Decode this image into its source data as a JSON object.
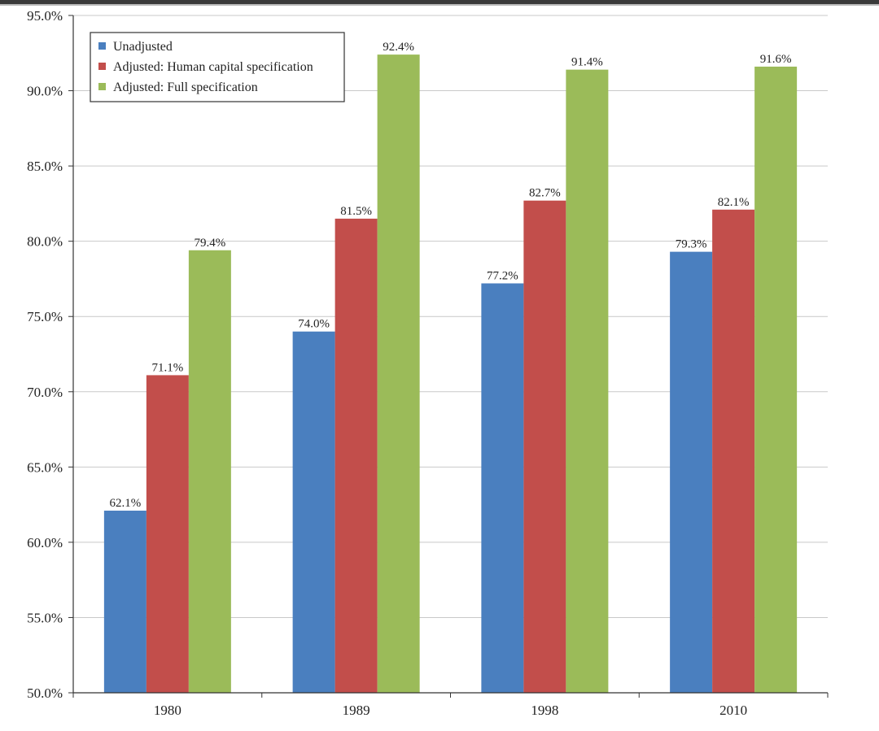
{
  "colors": {
    "unadjusted": "#4a7fbf",
    "human_capital": "#c24e4b",
    "full": "#9bbb59",
    "grid": "#c9c9c9",
    "axis": "#333333"
  },
  "chart_data": {
    "type": "bar",
    "title": "",
    "xlabel": "",
    "ylabel": "",
    "categories": [
      "1980",
      "1989",
      "1998",
      "2010"
    ],
    "series": [
      {
        "name": "Unadjusted",
        "values": [
          62.1,
          74.0,
          77.2,
          79.3
        ],
        "labels": [
          "62.1%",
          "74.0%",
          "77.2%",
          "79.3%"
        ],
        "color_key": "unadjusted"
      },
      {
        "name": "Adjusted: Human capital specification",
        "values": [
          71.1,
          81.5,
          82.7,
          82.1
        ],
        "labels": [
          "71.1%",
          "81.5%",
          "82.7%",
          "82.1%"
        ],
        "color_key": "human_capital"
      },
      {
        "name": "Adjusted: Full specification",
        "values": [
          79.4,
          92.4,
          91.4,
          91.6
        ],
        "labels": [
          "79.4%",
          "92.4%",
          "91.4%",
          "91.6%"
        ],
        "color_key": "full"
      }
    ],
    "ylim": [
      50,
      95
    ],
    "yticks": [
      50,
      55,
      60,
      65,
      70,
      75,
      80,
      85,
      90,
      95
    ],
    "ytick_labels": [
      "50.0%",
      "55.0%",
      "60.0%",
      "65.0%",
      "70.0%",
      "75.0%",
      "80.0%",
      "85.0%",
      "90.0%",
      "95.0%"
    ],
    "grid": true,
    "legend_position": "top-left"
  }
}
